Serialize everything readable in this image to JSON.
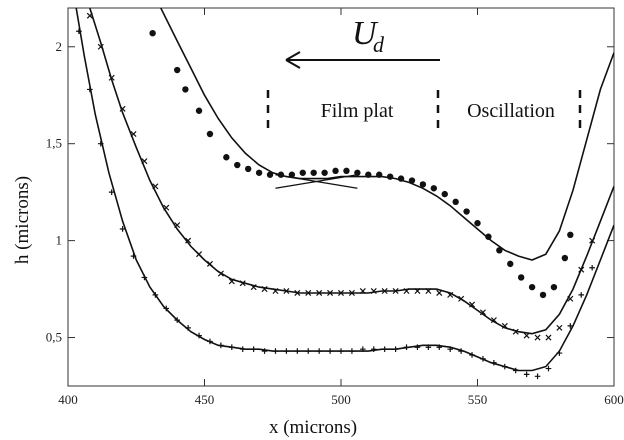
{
  "chart_data": {
    "type": "scatter",
    "xlabel": "x (microns)",
    "ylabel": "h (microns)",
    "xlim": [
      400,
      600
    ],
    "ylim": [
      0.25,
      2.2
    ],
    "x_ticks": [
      "400",
      "450",
      "500",
      "550",
      "600"
    ],
    "y_ticks": [
      "0,5",
      "1",
      "1,5",
      "2"
    ],
    "grid": false,
    "annotations": {
      "arrow_label": "U",
      "arrow_subscript": "d",
      "regions": [
        "Film plat",
        "Oscillation"
      ]
    },
    "series": [
      {
        "marker": "dot",
        "points": [
          [
            431,
            2.07
          ],
          [
            440,
            1.88
          ],
          [
            443,
            1.78
          ],
          [
            448,
            1.67
          ],
          [
            452,
            1.55
          ],
          [
            458,
            1.43
          ],
          [
            462,
            1.39
          ],
          [
            466,
            1.37
          ],
          [
            470,
            1.35
          ],
          [
            474,
            1.34
          ],
          [
            478,
            1.34
          ],
          [
            482,
            1.34
          ],
          [
            486,
            1.35
          ],
          [
            490,
            1.35
          ],
          [
            494,
            1.35
          ],
          [
            498,
            1.36
          ],
          [
            502,
            1.36
          ],
          [
            506,
            1.35
          ],
          [
            510,
            1.34
          ],
          [
            514,
            1.34
          ],
          [
            518,
            1.33
          ],
          [
            522,
            1.32
          ],
          [
            526,
            1.31
          ],
          [
            530,
            1.29
          ],
          [
            534,
            1.27
          ],
          [
            538,
            1.24
          ],
          [
            542,
            1.2
          ],
          [
            546,
            1.15
          ],
          [
            550,
            1.09
          ],
          [
            554,
            1.02
          ],
          [
            558,
            0.95
          ],
          [
            562,
            0.88
          ],
          [
            566,
            0.81
          ],
          [
            570,
            0.76
          ],
          [
            574,
            0.72
          ],
          [
            578,
            0.76
          ],
          [
            582,
            0.91
          ],
          [
            584,
            1.03
          ]
        ]
      },
      {
        "marker": "x",
        "points": [
          [
            408,
            2.16
          ],
          [
            412,
            2.0
          ],
          [
            416,
            1.84
          ],
          [
            420,
            1.68
          ],
          [
            424,
            1.55
          ],
          [
            428,
            1.41
          ],
          [
            432,
            1.28
          ],
          [
            436,
            1.17
          ],
          [
            440,
            1.08
          ],
          [
            444,
            1.0
          ],
          [
            448,
            0.93
          ],
          [
            452,
            0.88
          ],
          [
            456,
            0.83
          ],
          [
            460,
            0.79
          ],
          [
            464,
            0.78
          ],
          [
            468,
            0.76
          ],
          [
            472,
            0.75
          ],
          [
            476,
            0.74
          ],
          [
            480,
            0.74
          ],
          [
            484,
            0.73
          ],
          [
            488,
            0.73
          ],
          [
            492,
            0.73
          ],
          [
            496,
            0.73
          ],
          [
            500,
            0.73
          ],
          [
            504,
            0.73
          ],
          [
            508,
            0.74
          ],
          [
            512,
            0.74
          ],
          [
            516,
            0.74
          ],
          [
            520,
            0.74
          ],
          [
            524,
            0.74
          ],
          [
            528,
            0.74
          ],
          [
            532,
            0.74
          ],
          [
            536,
            0.73
          ],
          [
            540,
            0.72
          ],
          [
            544,
            0.7
          ],
          [
            548,
            0.67
          ],
          [
            552,
            0.63
          ],
          [
            556,
            0.59
          ],
          [
            560,
            0.56
          ],
          [
            564,
            0.53
          ],
          [
            568,
            0.51
          ],
          [
            572,
            0.5
          ],
          [
            576,
            0.5
          ],
          [
            580,
            0.55
          ],
          [
            584,
            0.7
          ],
          [
            588,
            0.85
          ],
          [
            592,
            1.0
          ]
        ]
      },
      {
        "marker": "plus",
        "points": [
          [
            404,
            2.08
          ],
          [
            408,
            1.78
          ],
          [
            412,
            1.5
          ],
          [
            416,
            1.25
          ],
          [
            420,
            1.06
          ],
          [
            424,
            0.92
          ],
          [
            428,
            0.81
          ],
          [
            432,
            0.72
          ],
          [
            436,
            0.65
          ],
          [
            440,
            0.59
          ],
          [
            444,
            0.55
          ],
          [
            448,
            0.51
          ],
          [
            452,
            0.48
          ],
          [
            456,
            0.46
          ],
          [
            460,
            0.45
          ],
          [
            464,
            0.44
          ],
          [
            468,
            0.44
          ],
          [
            472,
            0.43
          ],
          [
            476,
            0.43
          ],
          [
            480,
            0.43
          ],
          [
            484,
            0.43
          ],
          [
            488,
            0.43
          ],
          [
            492,
            0.43
          ],
          [
            496,
            0.43
          ],
          [
            500,
            0.43
          ],
          [
            504,
            0.43
          ],
          [
            508,
            0.44
          ],
          [
            512,
            0.44
          ],
          [
            516,
            0.44
          ],
          [
            520,
            0.44
          ],
          [
            524,
            0.45
          ],
          [
            528,
            0.45
          ],
          [
            532,
            0.45
          ],
          [
            536,
            0.45
          ],
          [
            540,
            0.44
          ],
          [
            544,
            0.43
          ],
          [
            548,
            0.41
          ],
          [
            552,
            0.39
          ],
          [
            556,
            0.37
          ],
          [
            560,
            0.35
          ],
          [
            564,
            0.33
          ],
          [
            568,
            0.31
          ],
          [
            572,
            0.3
          ],
          [
            576,
            0.34
          ],
          [
            580,
            0.42
          ],
          [
            584,
            0.56
          ],
          [
            588,
            0.72
          ],
          [
            592,
            0.86
          ]
        ]
      }
    ],
    "fit_curves": [
      [
        [
          434,
          2.2
        ],
        [
          440,
          2.03
        ],
        [
          445,
          1.89
        ],
        [
          450,
          1.75
        ],
        [
          455,
          1.63
        ],
        [
          460,
          1.53
        ],
        [
          465,
          1.45
        ],
        [
          470,
          1.39
        ],
        [
          475,
          1.35
        ],
        [
          480,
          1.33
        ],
        [
          485,
          1.32
        ],
        [
          490,
          1.32
        ],
        [
          495,
          1.32
        ],
        [
          500,
          1.33
        ],
        [
          505,
          1.33
        ],
        [
          510,
          1.33
        ],
        [
          515,
          1.33
        ],
        [
          520,
          1.32
        ],
        [
          525,
          1.3
        ],
        [
          530,
          1.27
        ],
        [
          535,
          1.23
        ],
        [
          540,
          1.18
        ],
        [
          545,
          1.12
        ],
        [
          550,
          1.06
        ],
        [
          555,
          1.0
        ],
        [
          560,
          0.95
        ],
        [
          565,
          0.92
        ],
        [
          570,
          0.9
        ],
        [
          575,
          0.93
        ],
        [
          580,
          1.05
        ],
        [
          585,
          1.26
        ],
        [
          590,
          1.52
        ],
        [
          595,
          1.78
        ],
        [
          600,
          1.97
        ]
      ],
      [
        [
          408,
          2.2
        ],
        [
          412,
          2.02
        ],
        [
          416,
          1.83
        ],
        [
          420,
          1.66
        ],
        [
          425,
          1.48
        ],
        [
          430,
          1.31
        ],
        [
          435,
          1.17
        ],
        [
          440,
          1.06
        ],
        [
          445,
          0.97
        ],
        [
          450,
          0.9
        ],
        [
          455,
          0.84
        ],
        [
          460,
          0.8
        ],
        [
          465,
          0.78
        ],
        [
          470,
          0.76
        ],
        [
          475,
          0.75
        ],
        [
          480,
          0.74
        ],
        [
          485,
          0.73
        ],
        [
          490,
          0.73
        ],
        [
          495,
          0.73
        ],
        [
          500,
          0.73
        ],
        [
          505,
          0.73
        ],
        [
          510,
          0.73
        ],
        [
          515,
          0.74
        ],
        [
          520,
          0.74
        ],
        [
          525,
          0.75
        ],
        [
          530,
          0.75
        ],
        [
          535,
          0.75
        ],
        [
          540,
          0.73
        ],
        [
          545,
          0.69
        ],
        [
          550,
          0.64
        ],
        [
          555,
          0.59
        ],
        [
          560,
          0.55
        ],
        [
          565,
          0.53
        ],
        [
          570,
          0.52
        ],
        [
          575,
          0.54
        ],
        [
          580,
          0.62
        ],
        [
          585,
          0.75
        ],
        [
          590,
          0.92
        ],
        [
          595,
          1.1
        ],
        [
          600,
          1.28
        ]
      ],
      [
        [
          403,
          2.2
        ],
        [
          406,
          1.95
        ],
        [
          410,
          1.65
        ],
        [
          415,
          1.35
        ],
        [
          420,
          1.1
        ],
        [
          425,
          0.9
        ],
        [
          430,
          0.76
        ],
        [
          435,
          0.66
        ],
        [
          440,
          0.59
        ],
        [
          445,
          0.53
        ],
        [
          450,
          0.49
        ],
        [
          455,
          0.46
        ],
        [
          460,
          0.45
        ],
        [
          465,
          0.44
        ],
        [
          470,
          0.44
        ],
        [
          475,
          0.43
        ],
        [
          480,
          0.43
        ],
        [
          485,
          0.43
        ],
        [
          490,
          0.43
        ],
        [
          495,
          0.43
        ],
        [
          500,
          0.43
        ],
        [
          505,
          0.43
        ],
        [
          510,
          0.43
        ],
        [
          515,
          0.44
        ],
        [
          520,
          0.44
        ],
        [
          525,
          0.45
        ],
        [
          530,
          0.46
        ],
        [
          535,
          0.46
        ],
        [
          540,
          0.45
        ],
        [
          545,
          0.43
        ],
        [
          550,
          0.4
        ],
        [
          555,
          0.37
        ],
        [
          560,
          0.35
        ],
        [
          565,
          0.33
        ],
        [
          570,
          0.33
        ],
        [
          575,
          0.35
        ],
        [
          580,
          0.43
        ],
        [
          585,
          0.56
        ],
        [
          590,
          0.72
        ],
        [
          595,
          0.9
        ],
        [
          600,
          1.08
        ]
      ]
    ],
    "cross_lines": [
      [
        [
          476,
          1.27
        ],
        [
          506,
          1.34
        ]
      ],
      [
        [
          476,
          1.34
        ],
        [
          506,
          1.27
        ]
      ]
    ]
  }
}
